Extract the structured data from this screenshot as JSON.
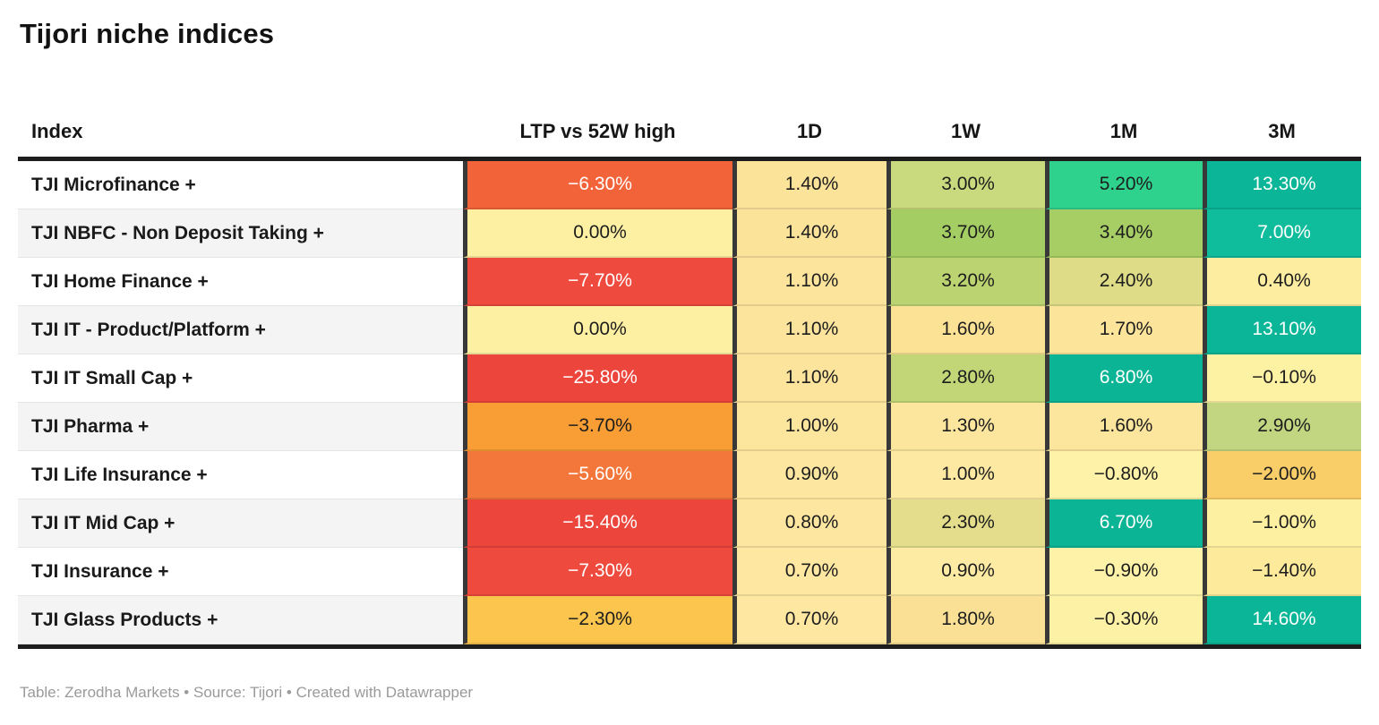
{
  "title": "Tijori niche indices",
  "footer": "Table: Zerodha Markets • Source: Tijori • Created with Datawrapper",
  "columns": [
    "Index",
    "LTP vs 52W high",
    "1D",
    "1W",
    "1M",
    "3M"
  ],
  "table": {
    "rows": [
      {
        "label": "TJI Microfinance +",
        "cells": [
          {
            "v": "−6.30%",
            "bg": "#f2633a",
            "white": true
          },
          {
            "v": "1.40%",
            "bg": "#fce39a"
          },
          {
            "v": "3.00%",
            "bg": "#c9d97d"
          },
          {
            "v": "5.20%",
            "bg": "#2ed28d"
          },
          {
            "v": "13.30%",
            "bg": "#0bb597",
            "white": true
          }
        ]
      },
      {
        "label": "TJI NBFC - Non Deposit Taking +",
        "cells": [
          {
            "v": "0.00%",
            "bg": "#fdf0a2"
          },
          {
            "v": "1.40%",
            "bg": "#fce39a"
          },
          {
            "v": "3.70%",
            "bg": "#a4cd63"
          },
          {
            "v": "3.40%",
            "bg": "#a6ce64"
          },
          {
            "v": "7.00%",
            "bg": "#0fbc9c",
            "white": true
          }
        ]
      },
      {
        "label": "TJI Home Finance +",
        "cells": [
          {
            "v": "−7.70%",
            "bg": "#ee4a3e",
            "white": true
          },
          {
            "v": "1.10%",
            "bg": "#fce49c"
          },
          {
            "v": "3.20%",
            "bg": "#bcd371"
          },
          {
            "v": "2.40%",
            "bg": "#dedc87"
          },
          {
            "v": "0.40%",
            "bg": "#fdeda0"
          }
        ]
      },
      {
        "label": "TJI IT - Product/Platform +",
        "cells": [
          {
            "v": "0.00%",
            "bg": "#fdf0a2"
          },
          {
            "v": "1.10%",
            "bg": "#fce49c"
          },
          {
            "v": "1.60%",
            "bg": "#fbe295"
          },
          {
            "v": "1.70%",
            "bg": "#fce49b"
          },
          {
            "v": "13.10%",
            "bg": "#0bb597",
            "white": true
          }
        ]
      },
      {
        "label": "TJI IT Small Cap +",
        "cells": [
          {
            "v": "−25.80%",
            "bg": "#ec453c",
            "white": true
          },
          {
            "v": "1.10%",
            "bg": "#fce49c"
          },
          {
            "v": "2.80%",
            "bg": "#c2d677"
          },
          {
            "v": "6.80%",
            "bg": "#0cb496",
            "white": true
          },
          {
            "v": "−0.10%",
            "bg": "#fdf1a4"
          }
        ]
      },
      {
        "label": "TJI Pharma +",
        "cells": [
          {
            "v": "−3.70%",
            "bg": "#f99d35"
          },
          {
            "v": "1.00%",
            "bg": "#fce59d"
          },
          {
            "v": "1.30%",
            "bg": "#fce69e"
          },
          {
            "v": "1.60%",
            "bg": "#fce59c"
          },
          {
            "v": "2.90%",
            "bg": "#c2d581"
          }
        ]
      },
      {
        "label": "TJI Life Insurance +",
        "cells": [
          {
            "v": "−5.60%",
            "bg": "#f3773a",
            "white": true
          },
          {
            "v": "0.90%",
            "bg": "#fde69f"
          },
          {
            "v": "1.00%",
            "bg": "#fde9a2"
          },
          {
            "v": "−0.80%",
            "bg": "#fdf2a7"
          },
          {
            "v": "−2.00%",
            "bg": "#f9cd68"
          }
        ]
      },
      {
        "label": "TJI IT Mid Cap +",
        "cells": [
          {
            "v": "−15.40%",
            "bg": "#ec453c",
            "white": true
          },
          {
            "v": "0.80%",
            "bg": "#fde7a0"
          },
          {
            "v": "2.30%",
            "bg": "#e3dd8c"
          },
          {
            "v": "6.70%",
            "bg": "#0cb496",
            "white": true
          },
          {
            "v": "−1.00%",
            "bg": "#fdf0a0"
          }
        ]
      },
      {
        "label": "TJI Insurance +",
        "cells": [
          {
            "v": "−7.30%",
            "bg": "#ee4a3e",
            "white": true
          },
          {
            "v": "0.70%",
            "bg": "#fde7a1"
          },
          {
            "v": "0.90%",
            "bg": "#fdeaa3"
          },
          {
            "v": "−0.90%",
            "bg": "#fdf2a7"
          },
          {
            "v": "−1.40%",
            "bg": "#fdeb9b"
          }
        ]
      },
      {
        "label": "TJI Glass Products +",
        "cells": [
          {
            "v": "−2.30%",
            "bg": "#fbc54e"
          },
          {
            "v": "0.70%",
            "bg": "#fde7a1"
          },
          {
            "v": "1.80%",
            "bg": "#f9e094"
          },
          {
            "v": "−0.30%",
            "bg": "#fdf1a5"
          },
          {
            "v": "14.60%",
            "bg": "#0bb597",
            "white": true
          }
        ]
      }
    ]
  },
  "colors": {
    "rule": "#1d1d1d",
    "separator": "#383838",
    "alt_row": "#f4f4f4",
    "footer_text": "#9a9a9a",
    "negative_strong": "#ec453c",
    "neutral": "#fdf0a2",
    "positive_strong": "#0bb597"
  },
  "chart_data": {
    "type": "table",
    "title": "Tijori niche indices",
    "columns": [
      "Index",
      "LTP vs 52W high",
      "1D",
      "1W",
      "1M",
      "3M"
    ],
    "units": "%",
    "heatmap": true,
    "rows": [
      [
        "TJI Microfinance +",
        -6.3,
        1.4,
        3.0,
        5.2,
        13.3
      ],
      [
        "TJI NBFC - Non Deposit Taking +",
        0.0,
        1.4,
        3.7,
        3.4,
        7.0
      ],
      [
        "TJI Home Finance +",
        -7.7,
        1.1,
        3.2,
        2.4,
        0.4
      ],
      [
        "TJI IT - Product/Platform +",
        0.0,
        1.1,
        1.6,
        1.7,
        13.1
      ],
      [
        "TJI IT Small Cap +",
        -25.8,
        1.1,
        2.8,
        6.8,
        -0.1
      ],
      [
        "TJI Pharma +",
        -3.7,
        1.0,
        1.3,
        1.6,
        2.9
      ],
      [
        "TJI Life Insurance +",
        -5.6,
        0.9,
        1.0,
        -0.8,
        -2.0
      ],
      [
        "TJI IT Mid Cap +",
        -15.4,
        0.8,
        2.3,
        6.7,
        -1.0
      ],
      [
        "TJI Insurance +",
        -7.3,
        0.7,
        0.9,
        -0.9,
        -1.4
      ],
      [
        "TJI Glass Products +",
        -2.3,
        0.7,
        1.8,
        -0.3,
        14.6
      ]
    ],
    "footer": "Table: Zerodha Markets • Source: Tijori • Created with Datawrapper"
  }
}
